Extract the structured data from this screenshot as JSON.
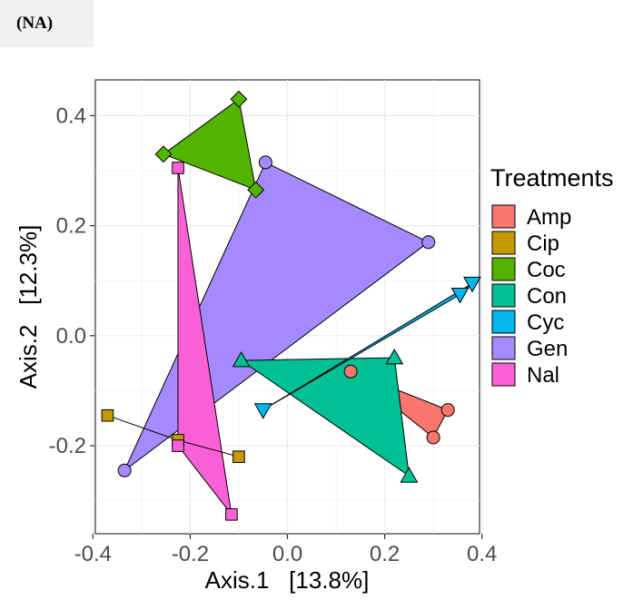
{
  "panel_label": "(NA)",
  "chart_data": {
    "type": "scatter",
    "xlabel": "Axis.1   [13.8%]",
    "ylabel": "Axis.2   [12.3%]",
    "xlim": [
      -0.395,
      0.395
    ],
    "ylim": [
      -0.36,
      0.465
    ],
    "x_ticks": [
      "-0.4",
      "-0.2",
      "0.0",
      "0.2",
      "0.4"
    ],
    "x_tick_values": [
      -0.4,
      -0.2,
      0.0,
      0.2,
      0.4
    ],
    "y_ticks": [
      "0.4",
      "0.2",
      "0.0",
      "-0.2"
    ],
    "y_tick_values": [
      0.4,
      0.2,
      0.0,
      -0.2
    ],
    "grid": true,
    "legend_title": "Treatments",
    "legend_position": "right",
    "series": [
      {
        "name": "Amp",
        "color": "#F8766D",
        "shape": "circle",
        "points": [
          [
            0.3,
            -0.185
          ],
          [
            0.33,
            -0.135
          ],
          [
            0.13,
            -0.065
          ]
        ]
      },
      {
        "name": "Cip",
        "color": "#C49A00",
        "shape": "square",
        "points": [
          [
            -0.37,
            -0.145
          ],
          [
            -0.225,
            -0.19
          ],
          [
            -0.1,
            -0.22
          ]
        ]
      },
      {
        "name": "Coc",
        "color": "#53B400",
        "shape": "diamond",
        "points": [
          [
            -0.255,
            0.33
          ],
          [
            -0.1,
            0.43
          ],
          [
            -0.065,
            0.265
          ]
        ]
      },
      {
        "name": "Con",
        "color": "#00C094",
        "shape": "triangle",
        "points": [
          [
            0.25,
            -0.255
          ],
          [
            -0.095,
            -0.045
          ],
          [
            0.22,
            -0.04
          ]
        ]
      },
      {
        "name": "Cyc",
        "color": "#00B6EB",
        "shape": "triangle-down",
        "points": [
          [
            -0.05,
            -0.135
          ],
          [
            0.38,
            0.095
          ],
          [
            0.355,
            0.075
          ]
        ]
      },
      {
        "name": "Gen",
        "color": "#A58AFF",
        "shape": "circle",
        "points": [
          [
            -0.335,
            -0.245
          ],
          [
            0.29,
            0.17
          ],
          [
            -0.045,
            0.315
          ]
        ]
      },
      {
        "name": "Nal",
        "color": "#FB61D7",
        "shape": "square",
        "points": [
          [
            -0.225,
            0.305
          ],
          [
            -0.225,
            -0.2
          ],
          [
            -0.115,
            -0.325
          ]
        ]
      }
    ]
  }
}
